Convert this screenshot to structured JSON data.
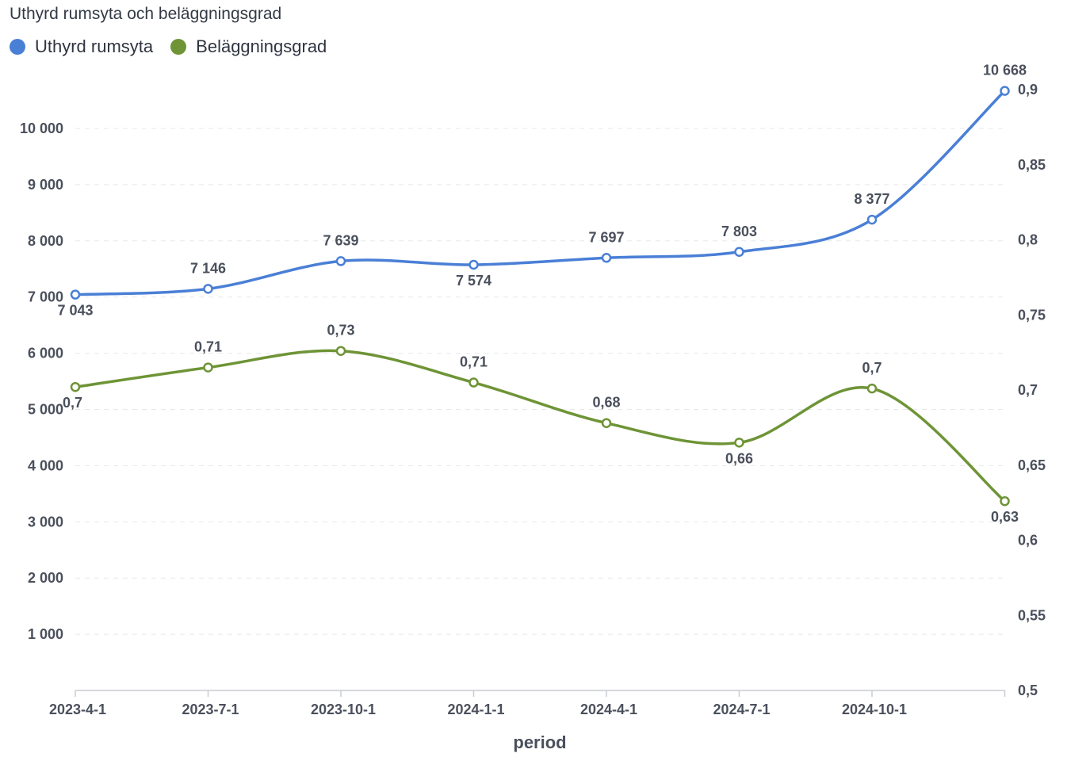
{
  "chart_data": {
    "type": "line",
    "title": "Uthyrd rumsyta och beläggningsgrad",
    "xlabel": "period",
    "categories": [
      "2023-4-1",
      "2023-7-1",
      "2023-10-1",
      "2024-1-1",
      "2024-4-1",
      "2024-7-1",
      "2024-10-1",
      ""
    ],
    "y_left": {
      "ylim": [
        0,
        11000
      ],
      "ticks": [
        1000,
        2000,
        3000,
        4000,
        5000,
        6000,
        7000,
        8000,
        9000,
        10000
      ],
      "tick_labels": [
        "1 000",
        "2 000",
        "3 000",
        "4 000",
        "5 000",
        "6 000",
        "7 000",
        "8 000",
        "9 000",
        "10 000"
      ]
    },
    "y_right": {
      "ylim": [
        0.5,
        0.9
      ],
      "ticks": [
        0.5,
        0.55,
        0.6,
        0.65,
        0.7,
        0.75,
        0.8,
        0.85,
        0.9
      ],
      "tick_labels": [
        "0,5",
        "0,55",
        "0,6",
        "0,65",
        "0,7",
        "0,75",
        "0,8",
        "0,85",
        "0,9"
      ]
    },
    "grid": true,
    "legend_position": "top-left",
    "series": [
      {
        "name": "Uthyrd rumsyta",
        "axis": "left",
        "color": "#4a7fd6",
        "values": [
          7043,
          7146,
          7639,
          7574,
          7697,
          7803,
          8377,
          10668
        ],
        "labels": [
          "7 043",
          "7 146",
          "7 639",
          "7 574",
          "7 697",
          "7 803",
          "8 377",
          "10 668"
        ]
      },
      {
        "name": "Beläggningsgrad",
        "axis": "right",
        "color": "#6e9436",
        "values": [
          0.702,
          0.715,
          0.726,
          0.705,
          0.678,
          0.665,
          0.701,
          0.626
        ],
        "labels": [
          "0,7",
          "0,71",
          "0,73",
          "0,71",
          "0,68",
          "0,66",
          "0,7",
          "0,63"
        ]
      }
    ]
  }
}
